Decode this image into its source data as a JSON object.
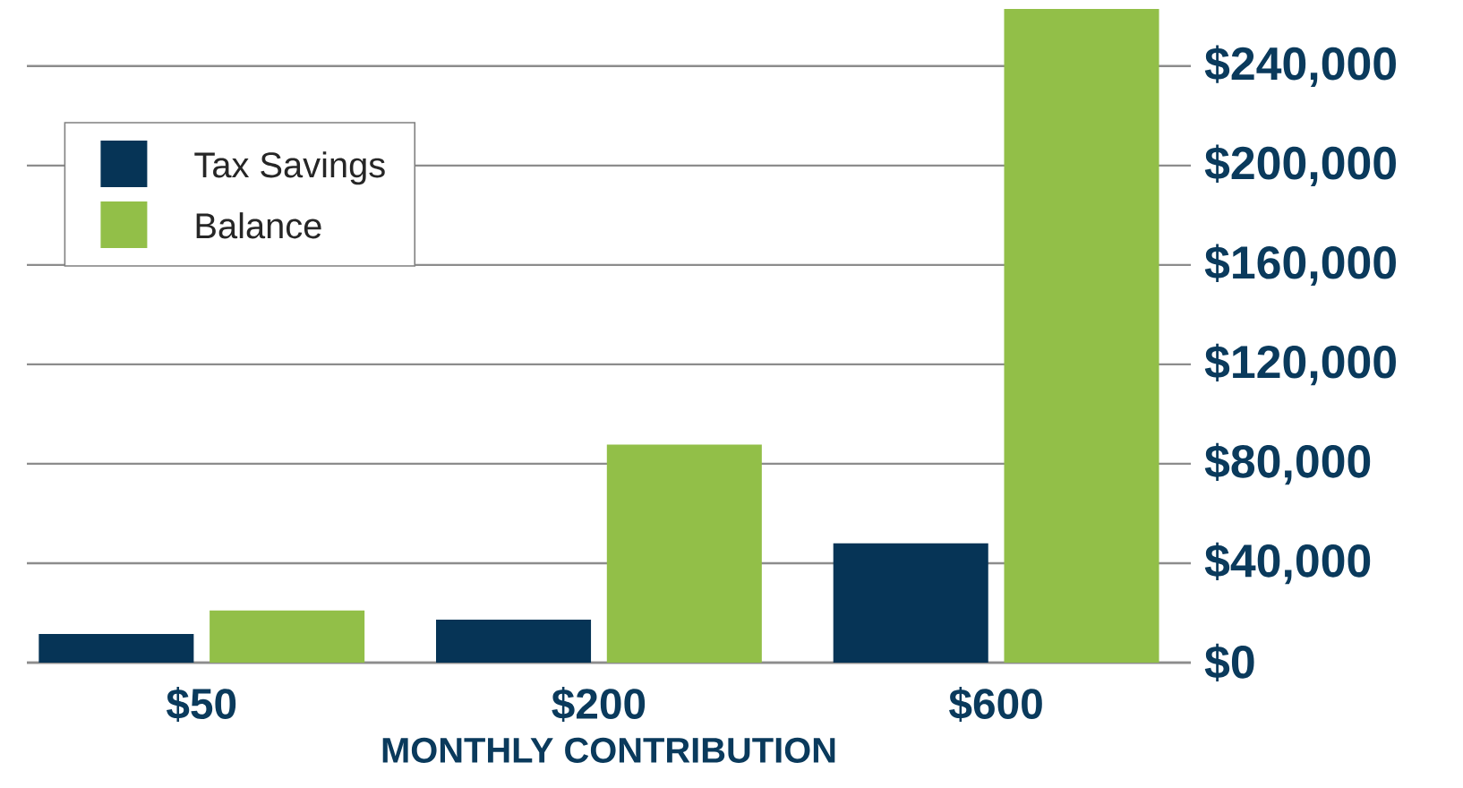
{
  "chart_data": {
    "type": "bar",
    "xlabel": "MONTHLY CONTRIBUTION",
    "categories": [
      "$50",
      "$200",
      "$600"
    ],
    "series": [
      {
        "name": "Tax Savings",
        "color": "#063456",
        "values": [
          11500,
          17300,
          48000
        ]
      },
      {
        "name": "Balance",
        "color": "#92bf48",
        "values": [
          21000,
          87700,
          263000
        ]
      }
    ],
    "yticks": [
      {
        "value": 0,
        "label": "$0"
      },
      {
        "value": 40000,
        "label": "$40,000"
      },
      {
        "value": 80000,
        "label": "$80,000"
      },
      {
        "value": 120000,
        "label": "$120,000"
      },
      {
        "value": 160000,
        "label": "$160,000"
      },
      {
        "value": 200000,
        "label": "$200,000"
      },
      {
        "value": 240000,
        "label": "$240,000"
      }
    ],
    "ylim": [
      0,
      263000
    ],
    "grid": "y",
    "legend": "top left"
  }
}
